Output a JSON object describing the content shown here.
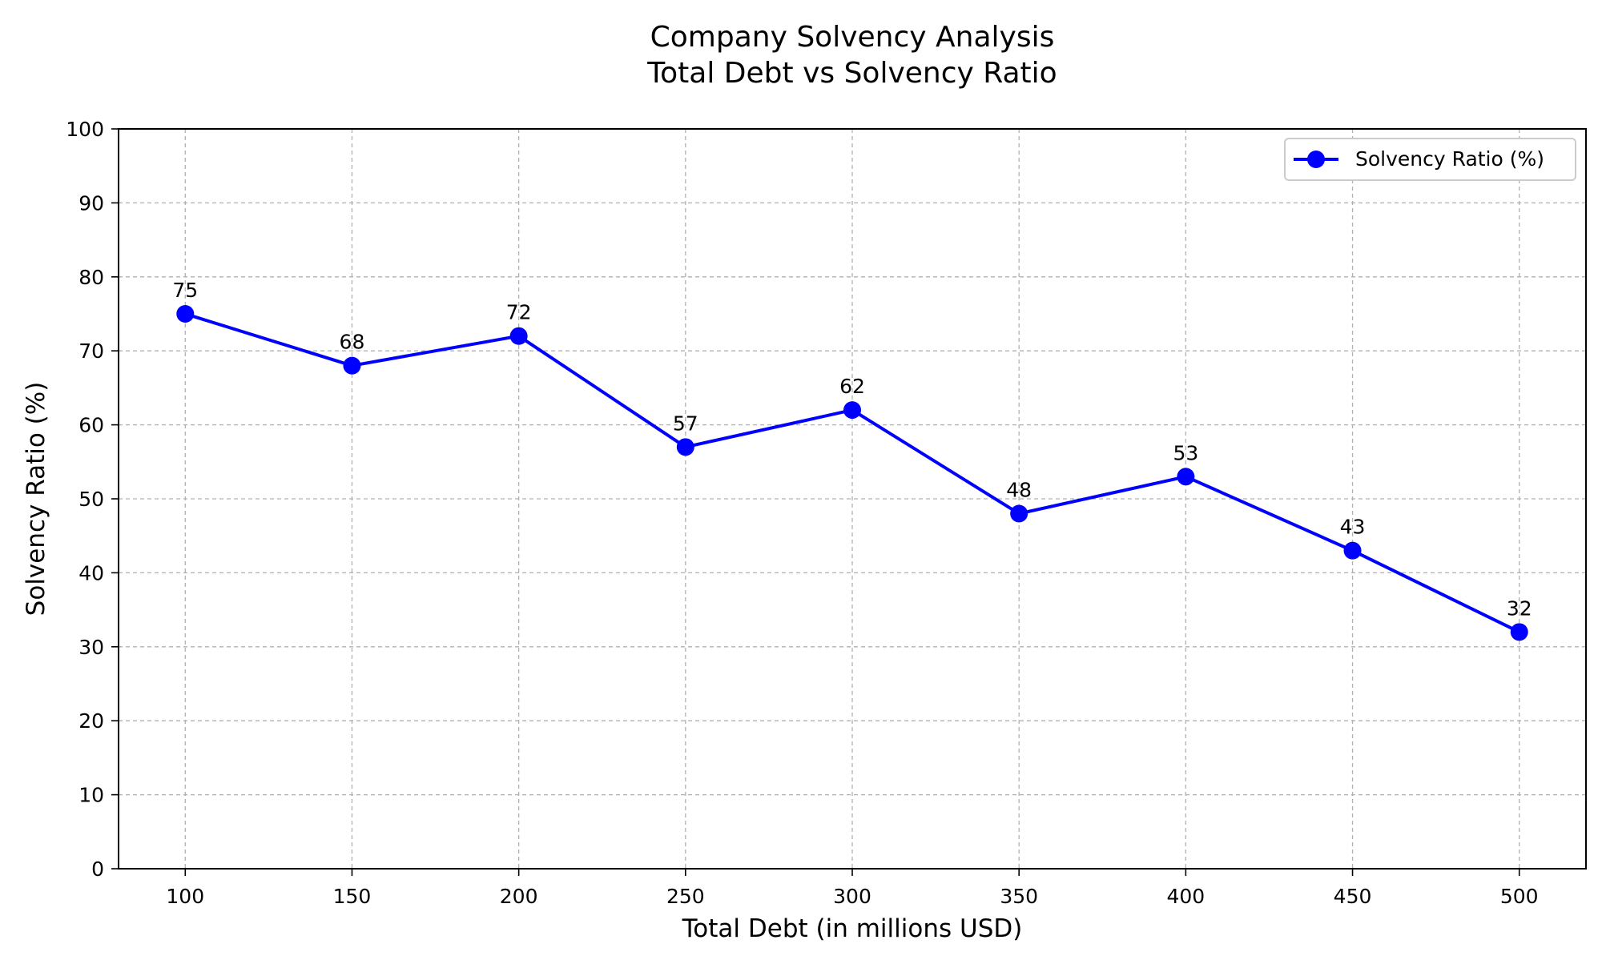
{
  "chart_data": {
    "type": "line",
    "title": "Company Solvency Analysis",
    "subtitle": "Total Debt vs Solvency Ratio",
    "xlabel": "Total Debt (in millions USD)",
    "ylabel": "Solvency Ratio (%)",
    "x": [
      100,
      150,
      200,
      250,
      300,
      350,
      400,
      450,
      500
    ],
    "xlim": [
      80,
      520
    ],
    "ylim": [
      0,
      100
    ],
    "x_ticks": [
      100,
      150,
      200,
      250,
      300,
      350,
      400,
      450,
      500
    ],
    "y_ticks": [
      0,
      10,
      20,
      30,
      40,
      50,
      60,
      70,
      80,
      90,
      100
    ],
    "grid": true,
    "legend_position": "top-right",
    "series": [
      {
        "name": "Solvency Ratio (%)",
        "color": "#0000ff",
        "marker": "circle",
        "values": [
          75,
          68,
          72,
          57,
          62,
          48,
          53,
          43,
          32
        ],
        "data_labels": [
          "75",
          "68",
          "72",
          "57",
          "62",
          "48",
          "53",
          "43",
          "32"
        ]
      }
    ]
  }
}
